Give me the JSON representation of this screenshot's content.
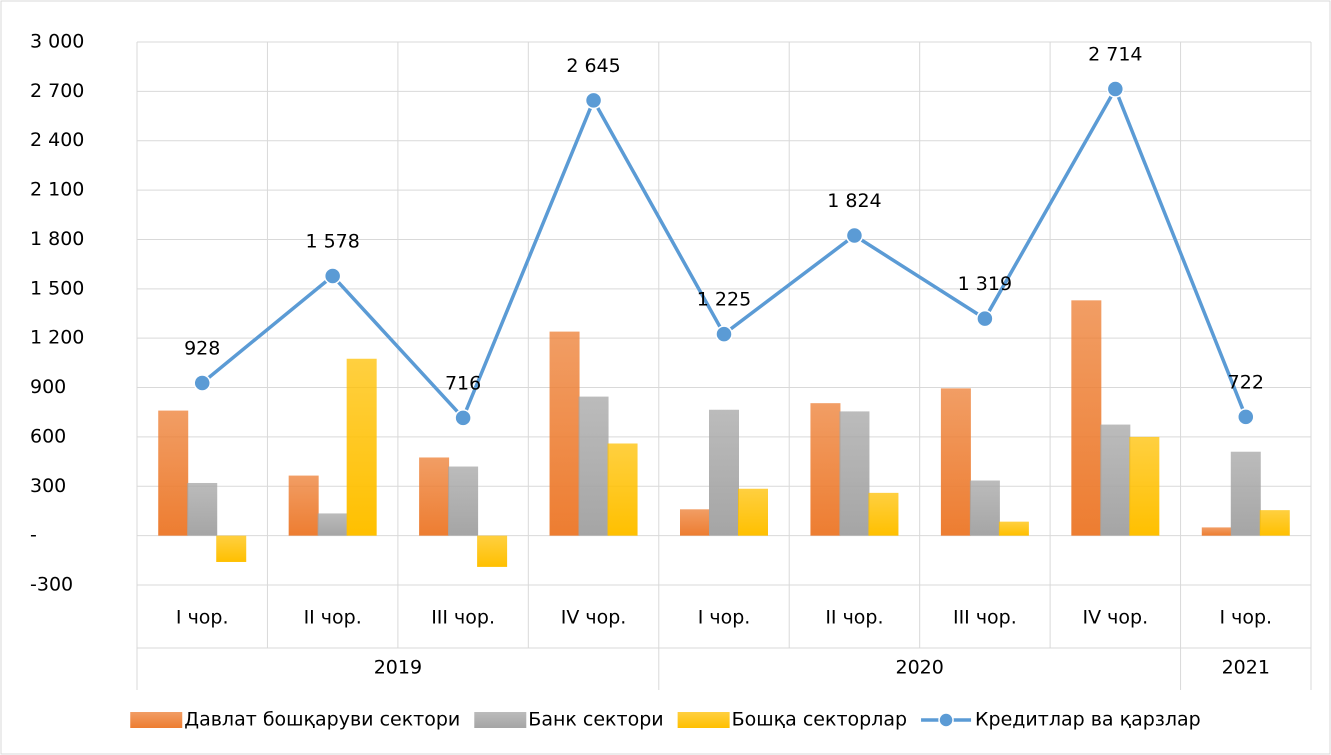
{
  "chart_data": {
    "type": "bar_line",
    "categories": [
      "I чор.",
      "II чор.",
      "III чор.",
      "IV чор.",
      "I чор.",
      "II чор.",
      "III чор.",
      "IV чор.",
      "I чор."
    ],
    "groups": [
      {
        "name": "2019",
        "count": 4
      },
      {
        "name": "2020",
        "count": 4
      },
      {
        "name": "2021",
        "count": 1
      }
    ],
    "series": [
      {
        "name": "Давлат бошқаруви сектори",
        "type": "bar",
        "color": "#ED7D31",
        "values": [
          760,
          365,
          475,
          1240,
          160,
          805,
          895,
          1430,
          50
        ]
      },
      {
        "name": "Банк сектори",
        "type": "bar",
        "color": "#A5A5A5",
        "values": [
          320,
          135,
          420,
          845,
          765,
          755,
          335,
          675,
          510
        ]
      },
      {
        "name": "Бошқа секторлар",
        "type": "bar",
        "color": "#FFC000",
        "values": [
          -160,
          1075,
          -190,
          560,
          285,
          260,
          85,
          600,
          155
        ]
      },
      {
        "name": "Кредитлар ва қарзлар",
        "type": "line",
        "color": "#5B9BD5",
        "values": [
          928,
          1578,
          716,
          2645,
          1225,
          1824,
          1319,
          2714,
          722
        ],
        "value_labels": [
          "928",
          "1 578",
          "716",
          "2 645",
          "1 225",
          "1 824",
          "1 319",
          "2 714",
          "722"
        ]
      }
    ],
    "ylim": [
      -300,
      3000
    ],
    "yticks": [
      -300,
      {
        "value": 0,
        "label": "-"
      },
      300,
      600,
      900,
      {
        "value": 1200,
        "label": "1 200"
      },
      {
        "value": 1500,
        "label": "1 500"
      },
      {
        "value": 1800,
        "label": "1 800"
      },
      {
        "value": 2100,
        "label": "2 100"
      },
      {
        "value": 2400,
        "label": "2 400"
      },
      {
        "value": 2700,
        "label": "2 700"
      },
      {
        "value": 3000,
        "label": "3 000"
      }
    ],
    "grid": true,
    "legend": "bottom"
  }
}
